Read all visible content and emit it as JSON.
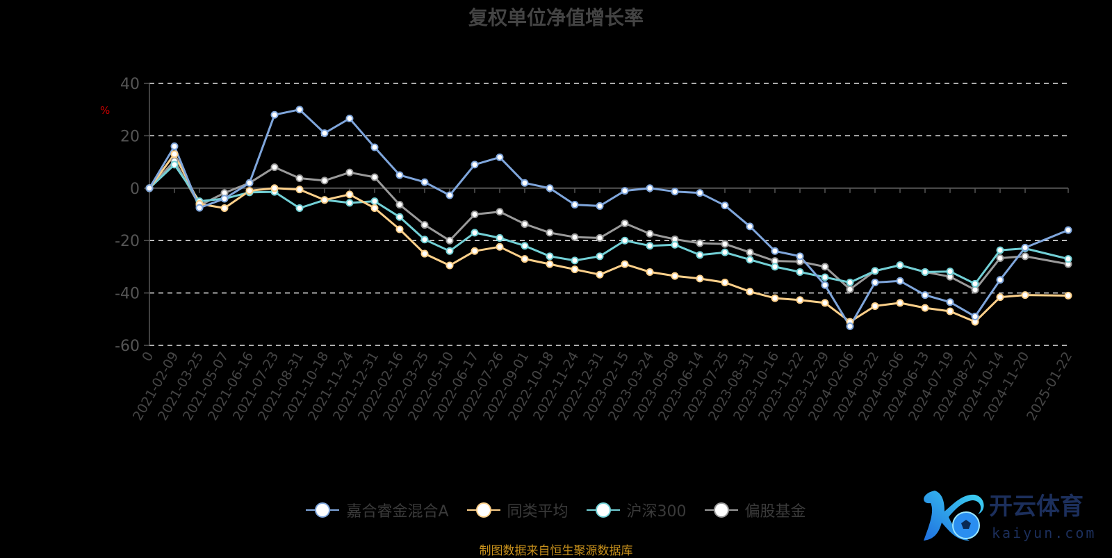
{
  "chart_data": {
    "type": "line",
    "title": "复权单位净值增长率",
    "ylabel": "%",
    "xlabel": "",
    "ylim": [
      -60,
      40
    ],
    "yticks": [
      40,
      20,
      0,
      -20,
      -40,
      -60
    ],
    "grid": true,
    "legend_position": "bottom",
    "categories": [
      "0",
      "2021-02-09",
      "2021-03-25",
      "2021-05-07",
      "2021-06-16",
      "2021-07-23",
      "2021-08-31",
      "2021-10-18",
      "2021-11-24",
      "2021-12-31",
      "2022-02-16",
      "2022-03-25",
      "2022-05-10",
      "2022-06-17",
      "2022-07-26",
      "2022-09-01",
      "2022-10-18",
      "2022-11-24",
      "2022-12-31",
      "2023-02-15",
      "2023-03-24",
      "2023-05-08",
      "2023-06-14",
      "2023-07-25",
      "2023-08-31",
      "2023-10-16",
      "2023-11-22",
      "2023-12-29",
      "2024-02-06",
      "2024-03-22",
      "2024-05-06",
      "2024-06-13",
      "2024-07-19",
      "2024-08-27",
      "2024-10-14",
      "2024-11-20",
      "2025-01-22"
    ],
    "series": [
      {
        "name": "嘉合睿金混合A",
        "color": "#7fa6dc",
        "values": [
          0,
          16,
          -7.5,
          -4,
          2,
          28,
          30,
          21,
          26.6,
          15.6,
          5,
          2.3,
          -2.7,
          9,
          11.8,
          2,
          0,
          -6.3,
          -6.8,
          -1,
          0,
          -1.3,
          -1.8,
          -6.6,
          -14.6,
          -24,
          -26,
          -37,
          -52.7,
          -36,
          -35.4,
          -40.8,
          -43.5,
          -49,
          -35,
          -22.7,
          -16
        ]
      },
      {
        "name": "同类平均",
        "color": "#fdd08a",
        "values": [
          0,
          13,
          -6,
          -7.6,
          -1,
          0,
          -0.5,
          -4.5,
          -2.4,
          -7.6,
          -15.7,
          -25,
          -29.5,
          -24,
          -22.4,
          -27,
          -29,
          -31,
          -33,
          -29,
          -32,
          -33.5,
          -34.5,
          -36,
          -39.5,
          -42,
          -42.7,
          -43.8,
          -51,
          -45,
          -43.8,
          -45.7,
          -47,
          -51,
          -41.6,
          -40.8,
          -41
        ]
      },
      {
        "name": "沪深300",
        "color": "#72d0d6",
        "values": [
          0,
          9,
          -5,
          -4,
          -1.6,
          -1.4,
          -7.6,
          -4.5,
          -5.6,
          -5,
          -11,
          -19.6,
          -24,
          -17,
          -19,
          -22,
          -26,
          -27.6,
          -26,
          -20,
          -22,
          -21.6,
          -25.5,
          -24.5,
          -27.3,
          -30,
          -32,
          -34,
          -36,
          -31.6,
          -29.4,
          -32,
          -31.8,
          -36.5,
          -23.7,
          -23,
          -27
        ]
      },
      {
        "name": "偏股基金",
        "color": "#9a9a9a",
        "values": [
          0,
          10.4,
          -6.6,
          -1.8,
          2,
          8,
          3.8,
          2.9,
          6,
          4.2,
          -6.3,
          -14,
          -20,
          -10,
          -9,
          -13.7,
          -17,
          -18.7,
          -19,
          -13.4,
          -17.4,
          -19.5,
          -21,
          -21.3,
          -24.5,
          -27.8,
          -28,
          -30,
          -38.6,
          -31.6,
          -29.4,
          -32,
          -33.8,
          -38.8,
          -26.7,
          -26,
          -29
        ]
      }
    ]
  },
  "source": "制图数据来自恒生聚源数据库",
  "watermark": {
    "brand": "开云体育",
    "domain": "kaiyun.com"
  }
}
